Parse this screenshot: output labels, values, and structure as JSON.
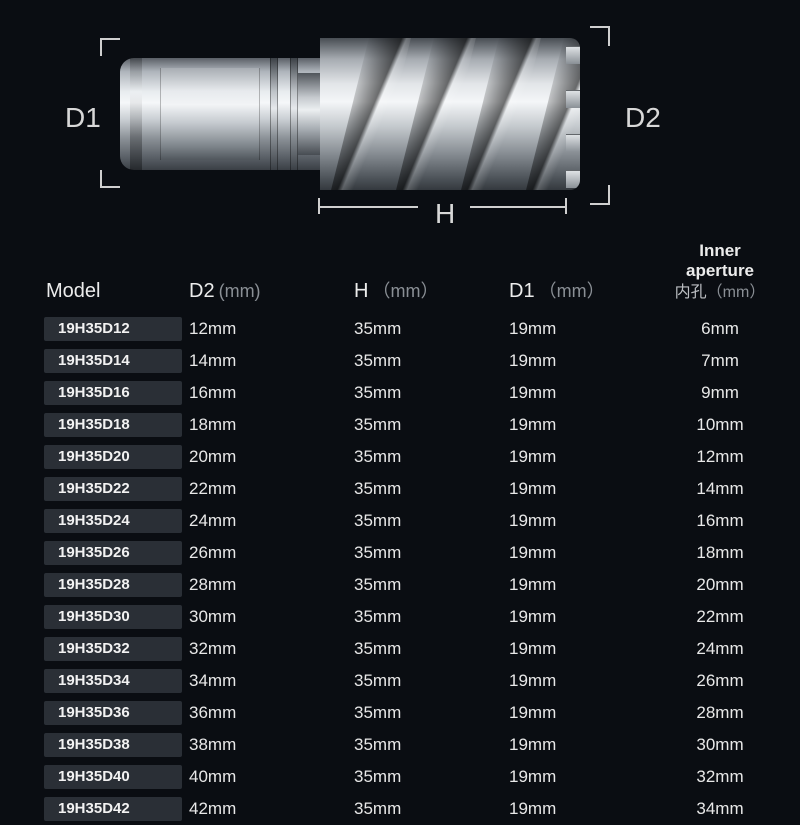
{
  "diagram": {
    "d1_label": "D1",
    "d2_label": "D2",
    "h_label": "H"
  },
  "table": {
    "background_color": "#0a0d12",
    "text_color": "#e8e8e8",
    "unit_color": "#8a8f95",
    "model_cell_bg": "#2a2f36",
    "columns": {
      "model": "Model",
      "d2": "D2",
      "h": "H",
      "d1": "D1",
      "inner_en": "Inner aperture",
      "inner_cn": "内孔",
      "unit": "(mm)",
      "unit_spaced": "（mm）"
    },
    "rows": [
      {
        "model": "19H35D12",
        "d2": "12mm",
        "h": "35mm",
        "d1": "19mm",
        "inner": "6mm"
      },
      {
        "model": "19H35D14",
        "d2": "14mm",
        "h": "35mm",
        "d1": "19mm",
        "inner": "7mm"
      },
      {
        "model": "19H35D16",
        "d2": "16mm",
        "h": "35mm",
        "d1": "19mm",
        "inner": "9mm"
      },
      {
        "model": "19H35D18",
        "d2": "18mm",
        "h": "35mm",
        "d1": "19mm",
        "inner": "10mm"
      },
      {
        "model": "19H35D20",
        "d2": "20mm",
        "h": "35mm",
        "d1": "19mm",
        "inner": "12mm"
      },
      {
        "model": "19H35D22",
        "d2": "22mm",
        "h": "35mm",
        "d1": "19mm",
        "inner": "14mm"
      },
      {
        "model": "19H35D24",
        "d2": "24mm",
        "h": "35mm",
        "d1": "19mm",
        "inner": "16mm"
      },
      {
        "model": "19H35D26",
        "d2": "26mm",
        "h": "35mm",
        "d1": "19mm",
        "inner": "18mm"
      },
      {
        "model": "19H35D28",
        "d2": "28mm",
        "h": "35mm",
        "d1": "19mm",
        "inner": "20mm"
      },
      {
        "model": "19H35D30",
        "d2": "30mm",
        "h": "35mm",
        "d1": "19mm",
        "inner": "22mm"
      },
      {
        "model": "19H35D32",
        "d2": "32mm",
        "h": "35mm",
        "d1": "19mm",
        "inner": "24mm"
      },
      {
        "model": "19H35D34",
        "d2": "34mm",
        "h": "35mm",
        "d1": "19mm",
        "inner": "26mm"
      },
      {
        "model": "19H35D36",
        "d2": "36mm",
        "h": "35mm",
        "d1": "19mm",
        "inner": "28mm"
      },
      {
        "model": "19H35D38",
        "d2": "38mm",
        "h": "35mm",
        "d1": "19mm",
        "inner": "30mm"
      },
      {
        "model": "19H35D40",
        "d2": "40mm",
        "h": "35mm",
        "d1": "19mm",
        "inner": "32mm"
      },
      {
        "model": "19H35D42",
        "d2": "42mm",
        "h": "35mm",
        "d1": "19mm",
        "inner": "34mm"
      }
    ]
  }
}
